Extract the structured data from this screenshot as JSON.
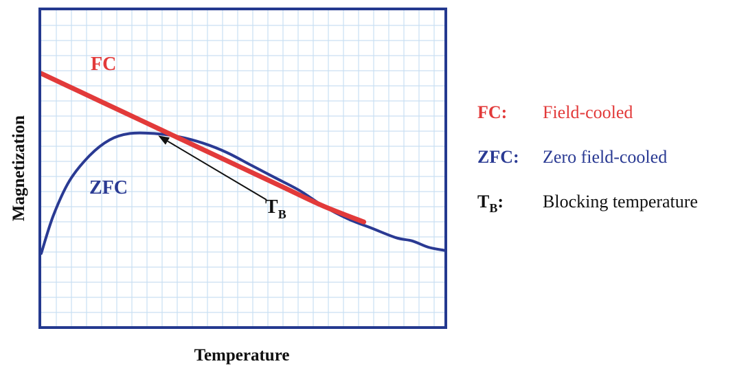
{
  "chart_data": {
    "type": "line",
    "xlabel": "Temperature",
    "ylabel": "Magnetization",
    "xlim": [
      0,
      100
    ],
    "ylim": [
      0,
      100
    ],
    "grid": true,
    "series": [
      {
        "name": "FC",
        "color": "#e23a3a",
        "x": [
          0,
          10,
          20,
          30,
          40,
          50,
          60,
          70,
          80
        ],
        "y": [
          80,
          74,
          68,
          62,
          56,
          50,
          44,
          38,
          33
        ]
      },
      {
        "name": "ZFC",
        "color": "#2a3a93",
        "x": [
          0,
          3,
          7,
          12,
          17,
          22,
          28,
          34,
          40,
          46,
          52,
          58,
          64,
          70,
          76,
          82,
          88,
          92,
          96,
          100
        ],
        "y": [
          23,
          35,
          46,
          54,
          59,
          61,
          61,
          60,
          58,
          55,
          51,
          47,
          43,
          38,
          34,
          31,
          28,
          27,
          25,
          24
        ]
      }
    ],
    "annotations": [
      {
        "label": "T",
        "subscript": "B",
        "points_to": {
          "x": 29,
          "y": 61
        }
      }
    ],
    "legend": {
      "placement": "right",
      "entries": [
        {
          "key": "FC:",
          "desc": "Field-cooled",
          "color": "#e23a3a",
          "desc_color": "#e23a3a"
        },
        {
          "key": "ZFC:",
          "desc": "Zero field-cooled",
          "color": "#2a3a93",
          "desc_color": "#2a3a93"
        },
        {
          "key": "T",
          "key_subscript": "B",
          "key_suffix": ":",
          "desc": "Blocking temperature",
          "color": "#111111",
          "desc_color": "#111111"
        }
      ]
    }
  }
}
